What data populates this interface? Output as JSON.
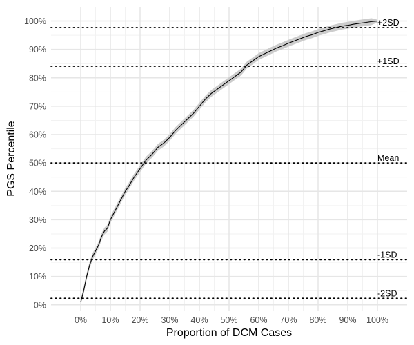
{
  "chart_data": {
    "type": "line",
    "title": "",
    "xlabel": "Proportion of DCM Cases",
    "ylabel": "PGS Percentile",
    "xlim": [
      -0.1,
      1.1
    ],
    "ylim": [
      -0.02,
      1.05
    ],
    "x_ticks": [
      0,
      0.1,
      0.2,
      0.3,
      0.4,
      0.5,
      0.6,
      0.7,
      0.8,
      0.9,
      1.0
    ],
    "x_tick_labels": [
      "0%",
      "10%",
      "20%",
      "30%",
      "40%",
      "50%",
      "60%",
      "70%",
      "80%",
      "90%",
      "100%"
    ],
    "y_ticks": [
      0,
      0.1,
      0.2,
      0.3,
      0.4,
      0.5,
      0.6,
      0.7,
      0.8,
      0.9,
      1.0
    ],
    "y_tick_labels": [
      "0%",
      "10%",
      "20%",
      "30%",
      "40%",
      "50%",
      "60%",
      "70%",
      "80%",
      "90%",
      "100%"
    ],
    "grid": true,
    "series": [
      {
        "x": [
          0.0,
          0.005,
          0.01,
          0.02,
          0.03,
          0.04,
          0.05,
          0.06,
          0.07,
          0.08,
          0.09,
          0.1,
          0.11,
          0.12,
          0.13,
          0.14,
          0.15,
          0.16,
          0.18,
          0.2,
          0.22,
          0.24,
          0.26,
          0.28,
          0.3,
          0.32,
          0.34,
          0.36,
          0.38,
          0.4,
          0.42,
          0.44,
          0.46,
          0.48,
          0.5,
          0.52,
          0.54,
          0.56,
          0.58,
          0.6,
          0.62,
          0.64,
          0.66,
          0.68,
          0.7,
          0.72,
          0.74,
          0.76,
          0.78,
          0.8,
          0.82,
          0.84,
          0.86,
          0.88,
          0.9,
          0.92,
          0.94,
          0.96,
          0.98,
          1.0
        ],
        "y": [
          0.01,
          0.03,
          0.05,
          0.1,
          0.14,
          0.17,
          0.19,
          0.21,
          0.24,
          0.26,
          0.27,
          0.3,
          0.32,
          0.34,
          0.36,
          0.38,
          0.4,
          0.415,
          0.45,
          0.48,
          0.51,
          0.53,
          0.555,
          0.57,
          0.59,
          0.615,
          0.635,
          0.655,
          0.675,
          0.7,
          0.725,
          0.745,
          0.76,
          0.775,
          0.79,
          0.805,
          0.82,
          0.845,
          0.86,
          0.875,
          0.885,
          0.895,
          0.905,
          0.913,
          0.922,
          0.93,
          0.938,
          0.946,
          0.952,
          0.96,
          0.966,
          0.972,
          0.977,
          0.982,
          0.985,
          0.989,
          0.992,
          0.995,
          0.998,
          1.0
        ],
        "band_halfwidth": 0.012,
        "line_color": "#000000",
        "band_color": "#cccccc"
      }
    ],
    "reference_lines": [
      {
        "y": 0.977,
        "label": "+2SD"
      },
      {
        "y": 0.841,
        "label": "+1SD"
      },
      {
        "y": 0.5,
        "label": "Mean"
      },
      {
        "y": 0.159,
        "label": "-1SD"
      },
      {
        "y": 0.023,
        "label": "-2SD"
      }
    ]
  }
}
